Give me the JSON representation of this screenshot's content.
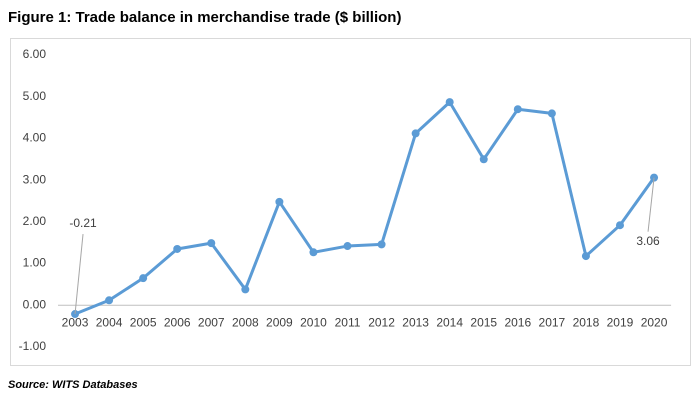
{
  "chart_data": {
    "type": "line",
    "title": "Figure 1: Trade balance in merchandise trade ($ billion)",
    "source": "Source: WITS Databases",
    "categories": [
      "2003",
      "2004",
      "2005",
      "2006",
      "2007",
      "2008",
      "2009",
      "2010",
      "2011",
      "2012",
      "2013",
      "2014",
      "2015",
      "2016",
      "2017",
      "2018",
      "2019",
      "2020"
    ],
    "values": [
      -0.21,
      0.12,
      0.65,
      1.35,
      1.49,
      0.38,
      2.48,
      1.27,
      1.42,
      1.46,
      4.12,
      4.87,
      3.5,
      4.7,
      4.6,
      1.18,
      1.92,
      3.06
    ],
    "value_labels": [
      "-0.21",
      null,
      null,
      null,
      null,
      null,
      null,
      null,
      null,
      null,
      null,
      null,
      null,
      null,
      null,
      null,
      null,
      "3.06"
    ],
    "color": "#5b9bd5",
    "ylim": [
      -1,
      6
    ],
    "yticks": [
      {
        "value": -1,
        "label": "-1.00"
      },
      {
        "value": 0,
        "label": "0.00"
      },
      {
        "value": 1,
        "label": "1.00"
      },
      {
        "value": 2,
        "label": "2.00"
      },
      {
        "value": 3,
        "label": "3.00"
      },
      {
        "value": 4,
        "label": "4.00"
      },
      {
        "value": 5,
        "label": "5.00"
      },
      {
        "value": 6,
        "label": "6.00"
      }
    ],
    "grid": false
  }
}
